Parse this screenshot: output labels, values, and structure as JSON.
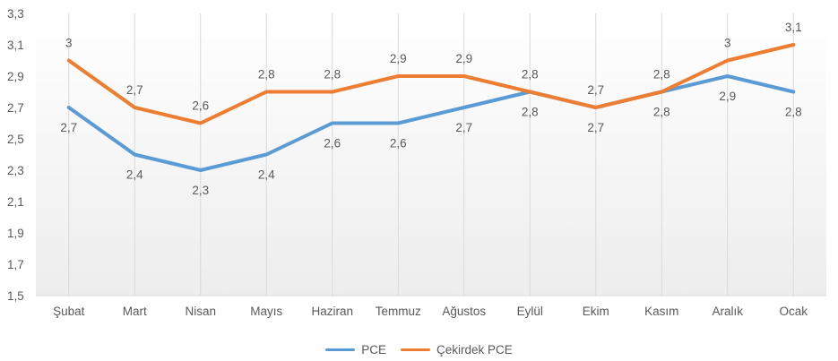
{
  "chart_data": {
    "type": "line",
    "categories": [
      "Şubat",
      "Mart",
      "Nisan",
      "Mayıs",
      "Haziran",
      "Temmuz",
      "Ağustos",
      "Eylül",
      "Ekim",
      "Kasım",
      "Aralık",
      "Ocak"
    ],
    "series": [
      {
        "name": "PCE",
        "color": "#5B9BD5",
        "values": [
          2.7,
          2.4,
          2.3,
          2.4,
          2.6,
          2.6,
          2.7,
          2.8,
          2.7,
          2.8,
          2.9,
          2.8
        ],
        "labels": [
          "2,7",
          "2,4",
          "2,3",
          "2,4",
          "2,6",
          "2,6",
          "2,7",
          "2,8",
          "2,7",
          "2,8",
          "2,9",
          "2,8"
        ],
        "label_position": "below"
      },
      {
        "name": "Çekirdek PCE",
        "color": "#ED7D31",
        "values": [
          3.0,
          2.7,
          2.6,
          2.8,
          2.8,
          2.9,
          2.9,
          2.8,
          2.7,
          2.8,
          3.0,
          3.1
        ],
        "labels": [
          "3",
          "2,7",
          "2,6",
          "2,8",
          "2,8",
          "2,9",
          "2,9",
          "2,8",
          "2,7",
          "2,8",
          "3",
          "3,1"
        ],
        "label_position": "above"
      }
    ],
    "y_axis": {
      "min": 1.5,
      "max": 3.3,
      "step": 0.2,
      "tick_labels": [
        "3,3",
        "3,1",
        "2,9",
        "2,7",
        "2,5",
        "2,3",
        "2,1",
        "1,9",
        "1,7",
        "1,5"
      ]
    },
    "title": "",
    "xlabel": "",
    "ylabel": "",
    "grid": "vertical-only",
    "legend_position": "bottom",
    "colors": {
      "pce_line": "#5B9BD5",
      "cekirdek_pce_line": "#ED7D31",
      "gridline": "#D9D9D9",
      "axis_line": "#D9D9D9",
      "text": "#595959",
      "plot_fill_top": "#FFFFFF",
      "plot_fill_bottom": "#EDEDED"
    }
  }
}
